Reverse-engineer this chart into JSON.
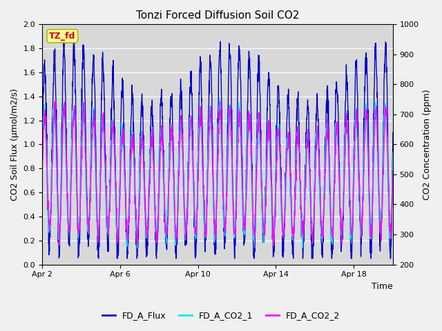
{
  "title": "Tonzi Forced Diffusion Soil CO2",
  "xlabel": "Time",
  "ylabel_left": "CO2 Soil Flux (μmol/m2/s)",
  "ylabel_right": "CO2 Concentration (ppm)",
  "left_ylim": [
    0.0,
    2.0
  ],
  "right_ylim": [
    200,
    1000
  ],
  "left_yticks": [
    0.0,
    0.2,
    0.4,
    0.6,
    0.8,
    1.0,
    1.2,
    1.4,
    1.6,
    1.8,
    2.0
  ],
  "right_yticks": [
    200,
    300,
    400,
    500,
    600,
    700,
    800,
    900,
    1000
  ],
  "xtick_labels": [
    "Apr 2",
    "Apr 6",
    "Apr 10",
    "Apr 14",
    "Apr 18"
  ],
  "xtick_positions": [
    0,
    4,
    8,
    12,
    16
  ],
  "tag_label": "TZ_fd",
  "tag_bg": "#ffff99",
  "tag_border": "#b8b800",
  "tag_text_color": "#cc0000",
  "flux_color": "#0000cd",
  "co2_1_color": "#00e5ff",
  "co2_2_color": "#ff00ff",
  "flux_lw": 1.0,
  "co2_lw": 1.0,
  "bg_color": "#d8d8d8",
  "fig_bg": "#f0f0f0",
  "grid_color": "#ffffff",
  "n_days": 19,
  "pts_per_day": 96
}
